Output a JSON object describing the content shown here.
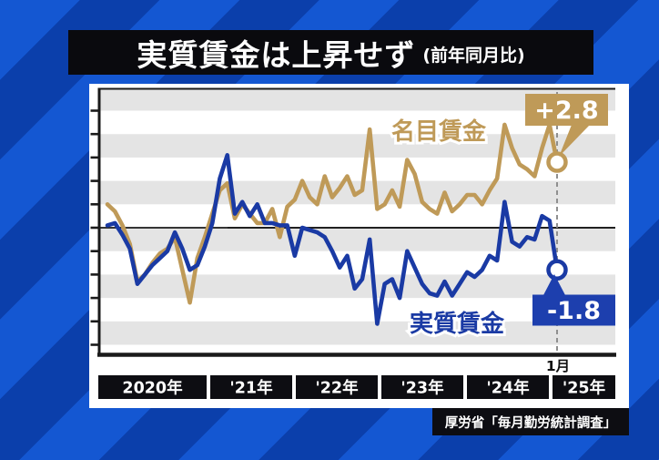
{
  "title": {
    "main": "実質賃金は上昇せず",
    "sub": "(前年同月比)"
  },
  "source": "厚労省「毎月勤労統計調査」",
  "annotations": {
    "nominal_series_label": "名目賃金",
    "real_series_label": "実質賃金",
    "nominal_callout": "+2.8",
    "real_callout": "-1.8",
    "last_month_label": "1月"
  },
  "colors": {
    "background_stripe_light": "#1457d2",
    "background_stripe_dark": "#0b3fab",
    "panel_white": "#ffffff",
    "band_gray": "#e4e4e4",
    "bar_black": "#0a0a0e",
    "nominal_gold": "#bf9a58",
    "real_blue": "#1a3aa4",
    "real_callout_blue": "#1d3fae"
  },
  "chart_data": {
    "type": "line",
    "title": "実質賃金は上昇せず (前年同月比)",
    "xlabel": "",
    "ylabel": "前年同月比 %",
    "ylim": [
      -5.0,
      5.0
    ],
    "grid": "horizontal-stripes",
    "legend_position": "inline-labels",
    "y_ticks": [
      "5.0",
      "4.0",
      "3.0",
      "2.0",
      "1.0",
      "0.0",
      "-1.0",
      "-2.0",
      "-3.0",
      "-4.0",
      "-5.0"
    ],
    "x_axis_labels": [
      "2020年",
      "'21年",
      "'22年",
      "'23年",
      "'24年",
      "'25年"
    ],
    "x_categories": [
      "2020-01",
      "2020-02",
      "2020-03",
      "2020-04",
      "2020-05",
      "2020-06",
      "2020-07",
      "2020-08",
      "2020-09",
      "2020-10",
      "2020-11",
      "2020-12",
      "2021-01",
      "2021-02",
      "2021-03",
      "2021-04",
      "2021-05",
      "2021-06",
      "2021-07",
      "2021-08",
      "2021-09",
      "2021-10",
      "2021-11",
      "2021-12",
      "2022-01",
      "2022-02",
      "2022-03",
      "2022-04",
      "2022-05",
      "2022-06",
      "2022-07",
      "2022-08",
      "2022-09",
      "2022-10",
      "2022-11",
      "2022-12",
      "2023-01",
      "2023-02",
      "2023-03",
      "2023-04",
      "2023-05",
      "2023-06",
      "2023-07",
      "2023-08",
      "2023-09",
      "2023-10",
      "2023-11",
      "2023-12",
      "2024-01",
      "2024-02",
      "2024-03",
      "2024-04",
      "2024-05",
      "2024-06",
      "2024-07",
      "2024-08",
      "2024-09",
      "2024-10",
      "2024-11",
      "2024-12",
      "2025-01"
    ],
    "series": [
      {
        "name": "名目賃金",
        "color": "#bf9a58",
        "end_value_label": "+2.8",
        "values": [
          1.0,
          0.7,
          0.1,
          -0.7,
          -2.3,
          -2.0,
          -1.5,
          -1.1,
          -0.9,
          -0.4,
          -1.8,
          -3.2,
          -1.3,
          -0.4,
          0.6,
          1.6,
          1.9,
          0.4,
          1.0,
          0.6,
          0.2,
          0.2,
          0.8,
          -0.4,
          0.9,
          1.2,
          2.0,
          1.3,
          1.0,
          2.2,
          1.3,
          1.7,
          2.2,
          1.4,
          1.6,
          4.2,
          0.8,
          1.0,
          1.6,
          0.9,
          2.9,
          2.3,
          1.1,
          0.8,
          0.6,
          1.5,
          0.7,
          1.0,
          1.4,
          1.4,
          1.0,
          1.6,
          2.1,
          4.4,
          3.4,
          2.7,
          2.5,
          2.2,
          3.4,
          4.4,
          2.8
        ]
      },
      {
        "name": "実質賃金",
        "color": "#1a3aa4",
        "end_value_label": "-1.8",
        "values": [
          0.1,
          0.2,
          -0.3,
          -0.9,
          -2.4,
          -2.0,
          -1.6,
          -1.3,
          -1.0,
          -0.2,
          -0.9,
          -1.8,
          -1.6,
          -0.8,
          0.2,
          2.1,
          3.1,
          0.6,
          1.1,
          0.5,
          1.0,
          0.2,
          0.2,
          0.1,
          0.1,
          -1.2,
          0.0,
          -0.1,
          -0.2,
          -0.4,
          -1.0,
          -1.7,
          -1.2,
          -2.6,
          -2.2,
          -0.5,
          -4.1,
          -2.4,
          -2.2,
          -3.0,
          -1.0,
          -1.7,
          -2.4,
          -2.8,
          -2.9,
          -2.3,
          -2.9,
          -2.4,
          -1.9,
          -2.1,
          -1.8,
          -1.2,
          -1.4,
          1.1,
          -0.6,
          -0.8,
          -0.4,
          -0.5,
          0.5,
          0.3,
          -1.8
        ]
      }
    ]
  }
}
